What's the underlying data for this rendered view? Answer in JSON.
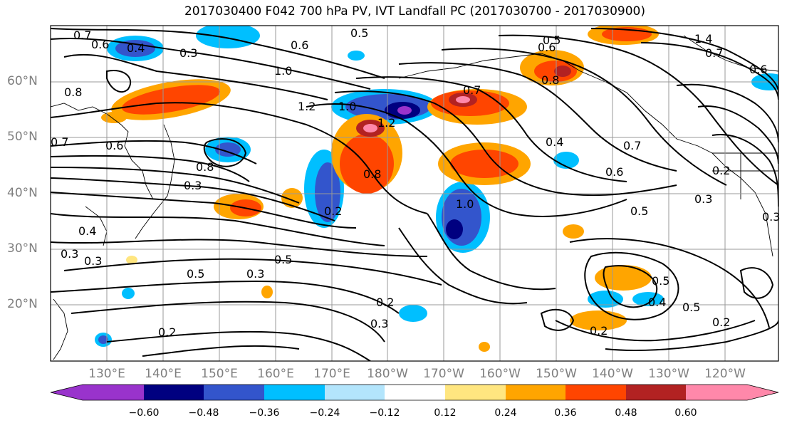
{
  "title": "2017030400 F042 700 hPa PV, IVT Landfall PC (2017030700 - 2017030900)",
  "lat_labels": [
    "60°N",
    "50°N",
    "40°N",
    "30°N",
    "20°N"
  ],
  "lon_labels": [
    "130°E",
    "140°E",
    "150°E",
    "160°E",
    "170°E",
    "180°W",
    "170°W",
    "160°W",
    "150°W",
    "140°W",
    "130°W",
    "120°W"
  ],
  "colorbar": {
    "ticks": [
      "−0.60",
      "−0.48",
      "−0.36",
      "−0.24",
      "−0.12",
      "0.12",
      "0.24",
      "0.36",
      "0.48",
      "0.60"
    ],
    "colors": [
      "#9933cc",
      "#000080",
      "#3355cc",
      "#00bfff",
      "#b3e5fc",
      "#ffffff",
      "#ffe680",
      "#ffa500",
      "#ff4500",
      "#b22222",
      "#ff88aa"
    ]
  },
  "contour_labels": [
    "0.7",
    "0.6",
    "0.4",
    "0.3",
    "0.6",
    "0.5",
    "0.5",
    "0.6",
    "1.4",
    "0.7",
    "0.6",
    "0.8",
    "0.7",
    "0.8",
    "1.0",
    "1.2",
    "1.0",
    "1.2",
    "0.7",
    "0.6",
    "0.8",
    "0.3",
    "0.8",
    "0.4",
    "0.6",
    "0.7",
    "0.5",
    "0.2",
    "0.3",
    "1.0",
    "0.2",
    "0.4",
    "0.3",
    "0.3",
    "0.5",
    "0.3",
    "0.5",
    "0.2",
    "0.3",
    "0.2",
    "0.5",
    "0.4",
    "0.5",
    "0.2",
    "0.2",
    "0.3"
  ]
}
